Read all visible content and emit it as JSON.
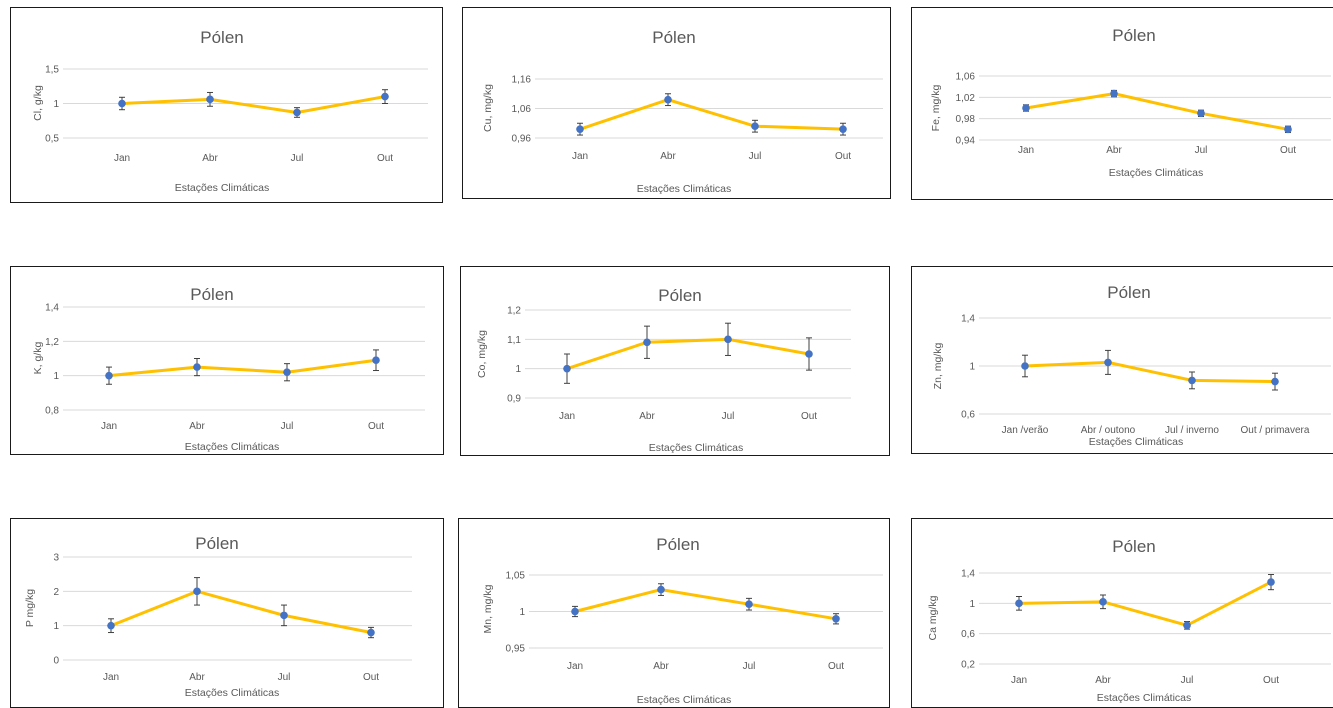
{
  "colors": {
    "line": "#FFC000",
    "marker": "#4472C4"
  },
  "chart_data": [
    {
      "type": "line",
      "title": "Pólen",
      "ylabel": "Cl, g/kg",
      "xlabel": "Estações Climáticas",
      "categories": [
        "Jan",
        "Abr",
        "Jul",
        "Out"
      ],
      "values": [
        1.0,
        1.06,
        0.87,
        1.1
      ],
      "errors": [
        0.09,
        0.1,
        0.07,
        0.1
      ],
      "ylim": [
        0.5,
        1.5
      ],
      "yticks": [
        "0,5",
        "1",
        "1,5"
      ],
      "ytick_values": [
        0.5,
        1,
        1.5
      ]
    },
    {
      "type": "line",
      "title": "Pólen",
      "ylabel": "Cu, mg/kg",
      "xlabel": "Estações Climáticas",
      "categories": [
        "Jan",
        "Abr",
        "Jul",
        "Out"
      ],
      "values": [
        0.99,
        1.09,
        1.0,
        0.99
      ],
      "errors": [
        0.02,
        0.02,
        0.02,
        0.02
      ],
      "ylim": [
        0.96,
        1.16
      ],
      "yticks": [
        "0,96",
        "1,06",
        "1,16"
      ],
      "ytick_values": [
        0.96,
        1.06,
        1.16
      ]
    },
    {
      "type": "line",
      "title": "Pólen",
      "ylabel": "Fe, mg/kg",
      "xlabel": "Estações Climáticas",
      "categories": [
        "Jan",
        "Abr",
        "Jul",
        "Out"
      ],
      "values": [
        1.0,
        1.027,
        0.99,
        0.96
      ],
      "errors": [
        0.006,
        0.006,
        0.006,
        0.006
      ],
      "ylim": [
        0.94,
        1.06
      ],
      "yticks": [
        "0,94",
        "0,98",
        "1,02",
        "1,06"
      ],
      "ytick_values": [
        0.94,
        0.98,
        1.02,
        1.06
      ]
    },
    {
      "type": "line",
      "title": "Pólen",
      "ylabel": "K, g/kg",
      "xlabel": "Estações Climáticas",
      "categories": [
        "Jan",
        "Abr",
        "Jul",
        "Out"
      ],
      "values": [
        1.0,
        1.05,
        1.02,
        1.09
      ],
      "errors": [
        0.05,
        0.05,
        0.05,
        0.06
      ],
      "ylim": [
        0.8,
        1.4
      ],
      "yticks": [
        "0,8",
        "1",
        "1,2",
        "1,4"
      ],
      "ytick_values": [
        0.8,
        1,
        1.2,
        1.4
      ]
    },
    {
      "type": "line",
      "title": "Pólen",
      "ylabel": "Co, mg/kg",
      "xlabel": "Estações Climáticas",
      "categories": [
        "Jan",
        "Abr",
        "Jul",
        "Out"
      ],
      "values": [
        1.0,
        1.09,
        1.1,
        1.05
      ],
      "errors": [
        0.05,
        0.055,
        0.055,
        0.055
      ],
      "ylim": [
        0.9,
        1.2
      ],
      "yticks": [
        "0,9",
        "1",
        "1,1",
        "1,2"
      ],
      "ytick_values": [
        0.9,
        1,
        1.1,
        1.2
      ]
    },
    {
      "type": "line",
      "title": "Pólen",
      "ylabel": "Zn, mg/kg",
      "xlabel": "Estações Climáticas",
      "categories": [
        "Jan /verão",
        "Abr / outono",
        "Jul / inverno",
        "Out / primavera"
      ],
      "values": [
        1.0,
        1.03,
        0.88,
        0.87
      ],
      "errors": [
        0.09,
        0.1,
        0.07,
        0.07
      ],
      "ylim": [
        0.6,
        1.4
      ],
      "yticks": [
        "0,6",
        "1",
        "1,4"
      ],
      "ytick_values": [
        0.6,
        1,
        1.4
      ]
    },
    {
      "type": "line",
      "title": "Pólen",
      "ylabel": "P mg/kg",
      "xlabel": "Estações Climáticas",
      "categories": [
        "Jan",
        "Abr",
        "Jul",
        "Out"
      ],
      "values": [
        1.0,
        2.0,
        1.3,
        0.8
      ],
      "errors": [
        0.2,
        0.4,
        0.3,
        0.15
      ],
      "ylim": [
        0,
        3
      ],
      "yticks": [
        "0",
        "1",
        "2",
        "3"
      ],
      "ytick_values": [
        0,
        1,
        2,
        3
      ]
    },
    {
      "type": "line",
      "title": "Pólen",
      "ylabel": "Mn, mg/kg",
      "xlabel": "Estações Climáticas",
      "categories": [
        "Jan",
        "Abr",
        "Jul",
        "Out"
      ],
      "values": [
        1.0,
        1.03,
        1.01,
        0.99
      ],
      "errors": [
        0.007,
        0.008,
        0.008,
        0.007
      ],
      "ylim": [
        0.95,
        1.05
      ],
      "yticks": [
        "0,95",
        "1",
        "1,05"
      ],
      "ytick_values": [
        0.95,
        1,
        1.05
      ]
    },
    {
      "type": "line",
      "title": "Pólen",
      "ylabel": "Ca mg/kg",
      "xlabel": "Estações Climáticas",
      "categories": [
        "Jan",
        "Abr",
        "Jul",
        "Out"
      ],
      "values": [
        1.0,
        1.02,
        0.71,
        1.28
      ],
      "errors": [
        0.09,
        0.09,
        0.05,
        0.1
      ],
      "ylim": [
        0.2,
        1.4
      ],
      "yticks": [
        "0,2",
        "0,6",
        "1",
        "1,4"
      ],
      "ytick_values": [
        0.2,
        0.6,
        1,
        1.4
      ]
    }
  ]
}
